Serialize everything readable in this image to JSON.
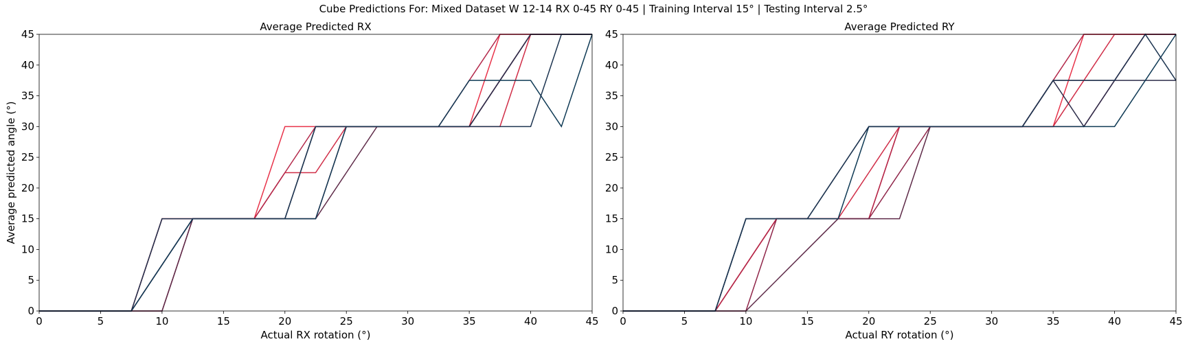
{
  "suptitle": "Cube Predictions For: Mixed Dataset W 12-14 RX 0-45 RY 0-45 | Training Interval 15° | Testing Interval 2.5°",
  "colors": [
    "#e8334a",
    "#c4294a",
    "#8f2549",
    "#5e2a48",
    "#2c2d4a",
    "#0f3a55"
  ],
  "chart_data": [
    {
      "type": "line",
      "title": "Average Predicted RX",
      "xlabel": "Actual RX rotation (°)",
      "ylabel": "Average predicted angle (°)",
      "xlim": [
        0,
        45
      ],
      "ylim": [
        0,
        45
      ],
      "xticks": [
        0,
        5,
        10,
        15,
        20,
        25,
        30,
        35,
        40,
        45
      ],
      "yticks": [
        0,
        5,
        10,
        15,
        20,
        25,
        30,
        35,
        40,
        45
      ],
      "grid": false,
      "x": [
        0,
        2.5,
        5,
        7.5,
        10,
        12.5,
        15,
        17.5,
        20,
        22.5,
        25,
        27.5,
        30,
        32.5,
        35,
        37.5,
        40,
        42.5,
        45
      ],
      "series": [
        {
          "color": "#e8334a",
          "values": [
            0,
            0,
            0,
            0,
            15,
            15,
            15,
            15,
            30,
            30,
            30,
            30,
            30,
            30,
            30,
            45,
            45,
            45,
            45
          ]
        },
        {
          "color": "#d02d47",
          "values": [
            0,
            0,
            0,
            0,
            15,
            15,
            15,
            15,
            22.5,
            22.5,
            30,
            30,
            30,
            30,
            30,
            30,
            45,
            45,
            45
          ]
        },
        {
          "color": "#b3284a",
          "values": [
            0,
            0,
            0,
            0,
            7.5,
            15,
            15,
            15,
            22.5,
            30,
            30,
            30,
            30,
            30,
            37.5,
            45,
            45,
            45,
            45
          ]
        },
        {
          "color": "#8f2549",
          "values": [
            0,
            0,
            0,
            0,
            0,
            15,
            15,
            15,
            15,
            15,
            30,
            30,
            30,
            30,
            30,
            37.5,
            45,
            45,
            45
          ]
        },
        {
          "color": "#5e2a48",
          "values": [
            0,
            0,
            0,
            0,
            0,
            15,
            15,
            15,
            15,
            15,
            22.5,
            30,
            30,
            30,
            30,
            37.5,
            45,
            45,
            45
          ]
        },
        {
          "color": "#2c2d4a",
          "values": [
            0,
            0,
            0,
            0,
            7.5,
            15,
            15,
            15,
            15,
            30,
            30,
            30,
            30,
            30,
            30,
            37.5,
            45,
            45,
            45
          ]
        },
        {
          "color": "#0f3a55",
          "values": [
            0,
            0,
            0,
            0,
            7.5,
            15,
            15,
            15,
            15,
            15,
            30,
            30,
            30,
            30,
            37.5,
            37.5,
            37.5,
            30,
            45
          ]
        },
        {
          "color": "#1c3450",
          "values": [
            0,
            0,
            0,
            0,
            15,
            15,
            15,
            15,
            15,
            30,
            30,
            30,
            30,
            30,
            30,
            30,
            30,
            45,
            45
          ]
        }
      ]
    },
    {
      "type": "line",
      "title": "Average Predicted RY",
      "xlabel": "Actual RY rotation (°)",
      "ylabel": "",
      "xlim": [
        0,
        45
      ],
      "ylim": [
        0,
        45
      ],
      "xticks": [
        0,
        5,
        10,
        15,
        20,
        25,
        30,
        35,
        40,
        45
      ],
      "yticks": [
        0,
        5,
        10,
        15,
        20,
        25,
        30,
        35,
        40,
        45
      ],
      "grid": false,
      "x": [
        0,
        2.5,
        5,
        7.5,
        10,
        12.5,
        15,
        17.5,
        20,
        22.5,
        25,
        27.5,
        30,
        32.5,
        35,
        37.5,
        40,
        42.5,
        45
      ],
      "series": [
        {
          "color": "#e8334a",
          "values": [
            0,
            0,
            0,
            0,
            7.5,
            15,
            15,
            15,
            15,
            30,
            30,
            30,
            30,
            30,
            30,
            45,
            45,
            45,
            45
          ]
        },
        {
          "color": "#d02d47",
          "values": [
            0,
            0,
            0,
            0,
            7.5,
            15,
            15,
            15,
            22.5,
            30,
            30,
            30,
            30,
            30,
            30,
            37.5,
            45,
            45,
            45
          ]
        },
        {
          "color": "#b3284a",
          "values": [
            0,
            0,
            0,
            0,
            7.5,
            15,
            15,
            15,
            15,
            30,
            30,
            30,
            30,
            30,
            37.5,
            45,
            45,
            45,
            45
          ]
        },
        {
          "color": "#8f2549",
          "values": [
            0,
            0,
            0,
            0,
            0,
            15,
            15,
            15,
            15,
            22.5,
            30,
            30,
            30,
            30,
            30,
            30,
            37.5,
            45,
            45
          ]
        },
        {
          "color": "#5e2a48",
          "values": [
            0,
            0,
            0,
            0,
            0,
            5,
            10,
            15,
            15,
            15,
            30,
            30,
            30,
            30,
            37.5,
            37.5,
            37.5,
            45,
            45
          ]
        },
        {
          "color": "#2c2d4a",
          "values": [
            0,
            0,
            0,
            0,
            15,
            15,
            15,
            22.5,
            30,
            30,
            30,
            30,
            30,
            30,
            37.5,
            30,
            37.5,
            37.5,
            37.5
          ]
        },
        {
          "color": "#0f3a55",
          "values": [
            0,
            0,
            0,
            0,
            15,
            15,
            15,
            15,
            30,
            30,
            30,
            30,
            30,
            30,
            30,
            30,
            30,
            37.5,
            45
          ]
        },
        {
          "color": "#1c3450",
          "values": [
            0,
            0,
            0,
            0,
            15,
            15,
            15,
            22.5,
            30,
            30,
            30,
            30,
            30,
            30,
            37.5,
            37.5,
            37.5,
            45,
            37.5
          ]
        }
      ]
    }
  ]
}
